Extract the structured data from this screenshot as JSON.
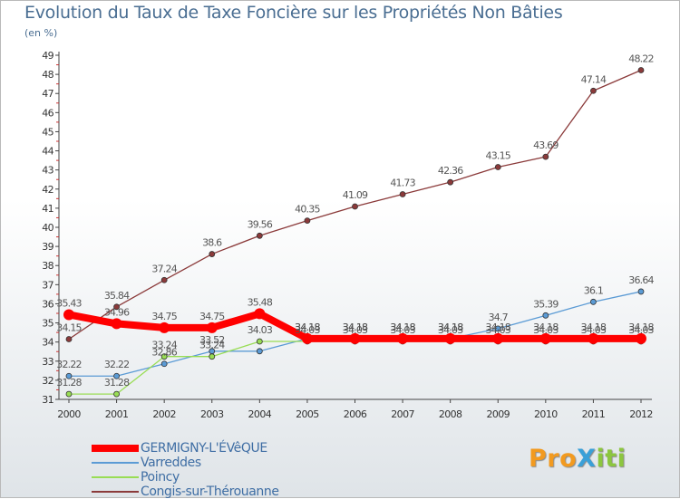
{
  "title": "Evolution du Taux de Taxe Foncière sur les Propriétés Non Bâties",
  "subtitle": "(en %)",
  "logo": {
    "text": "ProXiti",
    "part1": "Pro",
    "part2": "X",
    "part3": "iti"
  },
  "chart_data": {
    "type": "line",
    "title": "Evolution du Taux de Taxe Foncière sur les Propriétés Non Bâties",
    "ylabel": "(en %)",
    "xlabel": "",
    "categories": [
      "2000",
      "2001",
      "2002",
      "2003",
      "2004",
      "2005",
      "2006",
      "2007",
      "2008",
      "2009",
      "2010",
      "2011",
      "2012"
    ],
    "ylim": [
      31,
      49
    ],
    "yticks": [
      31,
      32,
      33,
      34,
      35,
      36,
      37,
      38,
      39,
      40,
      41,
      42,
      43,
      44,
      45,
      46,
      47,
      48,
      49
    ],
    "grid": false,
    "legend_position": "bottom-left",
    "series": [
      {
        "name": "GERMIGNY-L'ÉVêQUE",
        "color": "#ff0000",
        "values": [
          35.43,
          34.96,
          34.75,
          34.75,
          35.48,
          34.18,
          34.18,
          34.18,
          34.18,
          34.18,
          34.18,
          34.18,
          34.18
        ],
        "labels": [
          "35.43",
          "34.96",
          "34.75",
          "34.75",
          "35.48",
          "34.18",
          "34.18",
          "34.18",
          "34.18",
          "34.18",
          "34.18",
          "34.18",
          "34.18"
        ]
      },
      {
        "name": "Varreddes",
        "color": "#5b9bd5",
        "values": [
          32.22,
          32.22,
          32.86,
          33.52,
          33.52,
          34.18,
          34.18,
          34.18,
          34.18,
          34.7,
          35.39,
          36.1,
          36.64
        ],
        "labels": [
          "32.22",
          "32.22",
          "32.86",
          "33.52",
          "",
          "34.18",
          "34.18",
          "34.18",
          "34.18",
          "34.7",
          "35.39",
          "36.1",
          "36.64"
        ]
      },
      {
        "name": "Poincy",
        "color": "#99dd55",
        "values": [
          31.28,
          31.28,
          33.24,
          33.24,
          34.03,
          34.03,
          34.03,
          34.03,
          34.03,
          34.03,
          34.03,
          34.03,
          34.03
        ],
        "labels": [
          "31.28",
          "31.28",
          "33.24",
          "33.24",
          "34.03",
          "34.03",
          "34.03",
          "34.03",
          "34.03",
          "34.03",
          "34.03",
          "34.03",
          "34.03"
        ]
      },
      {
        "name": "Congis-sur-Thérouanne",
        "color": "#8b3a3a",
        "values": [
          34.15,
          35.84,
          37.24,
          38.6,
          39.56,
          40.35,
          41.09,
          41.73,
          42.36,
          43.15,
          43.69,
          47.14,
          48.22
        ],
        "labels": [
          "34.15",
          "35.84",
          "37.24",
          "38.6",
          "39.56",
          "40.35",
          "41.09",
          "41.73",
          "42.36",
          "43.15",
          "43.69",
          "47.14",
          "48.22"
        ]
      }
    ]
  }
}
